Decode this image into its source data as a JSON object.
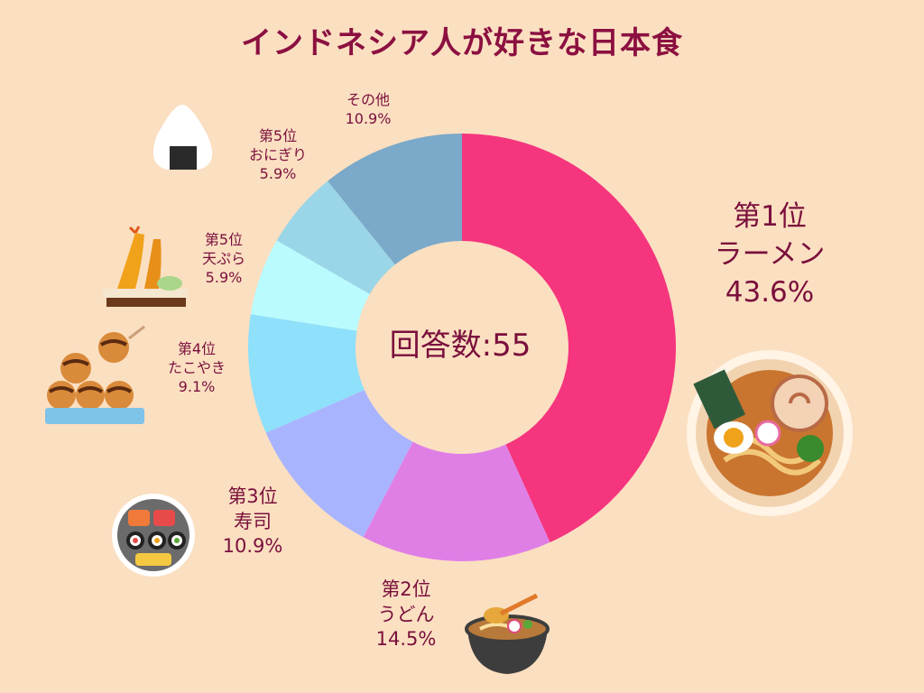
{
  "title": "インドネシア人が好きな日本食",
  "center_label": "回答数:55",
  "chart_data": {
    "type": "pie",
    "title": "インドネシア人が好きな日本食",
    "total_responses": 55,
    "slices": [
      {
        "rank": "第1位",
        "name": "ラーメン",
        "percent": 43.6,
        "percent_label": "43.6%",
        "color": "#f5357e"
      },
      {
        "rank": "第2位",
        "name": "うどん",
        "percent": 14.5,
        "percent_label": "14.5%",
        "color": "#df7fe6"
      },
      {
        "rank": "第3位",
        "name": "寿司",
        "percent": 10.9,
        "percent_label": "10.9%",
        "color": "#a9b4ff"
      },
      {
        "rank": "第4位",
        "name": "たこやき",
        "percent": 9.1,
        "percent_label": "9.1%",
        "color": "#8ee0fb"
      },
      {
        "rank": "第5位",
        "name": "天ぷら",
        "percent": 5.9,
        "percent_label": "5.9%",
        "color": "#b9fbff"
      },
      {
        "rank": "第5位",
        "name": "おにぎり",
        "percent": 5.9,
        "percent_label": "5.9%",
        "color": "#9ad6e8"
      },
      {
        "rank": "",
        "name": "その他",
        "percent": 10.9,
        "percent_label": "10.9%",
        "color": "#7aa9c9"
      }
    ]
  },
  "icons": [
    "ramen-icon",
    "udon-icon",
    "sushi-icon",
    "takoyaki-icon",
    "tempura-icon",
    "onigiri-icon"
  ]
}
